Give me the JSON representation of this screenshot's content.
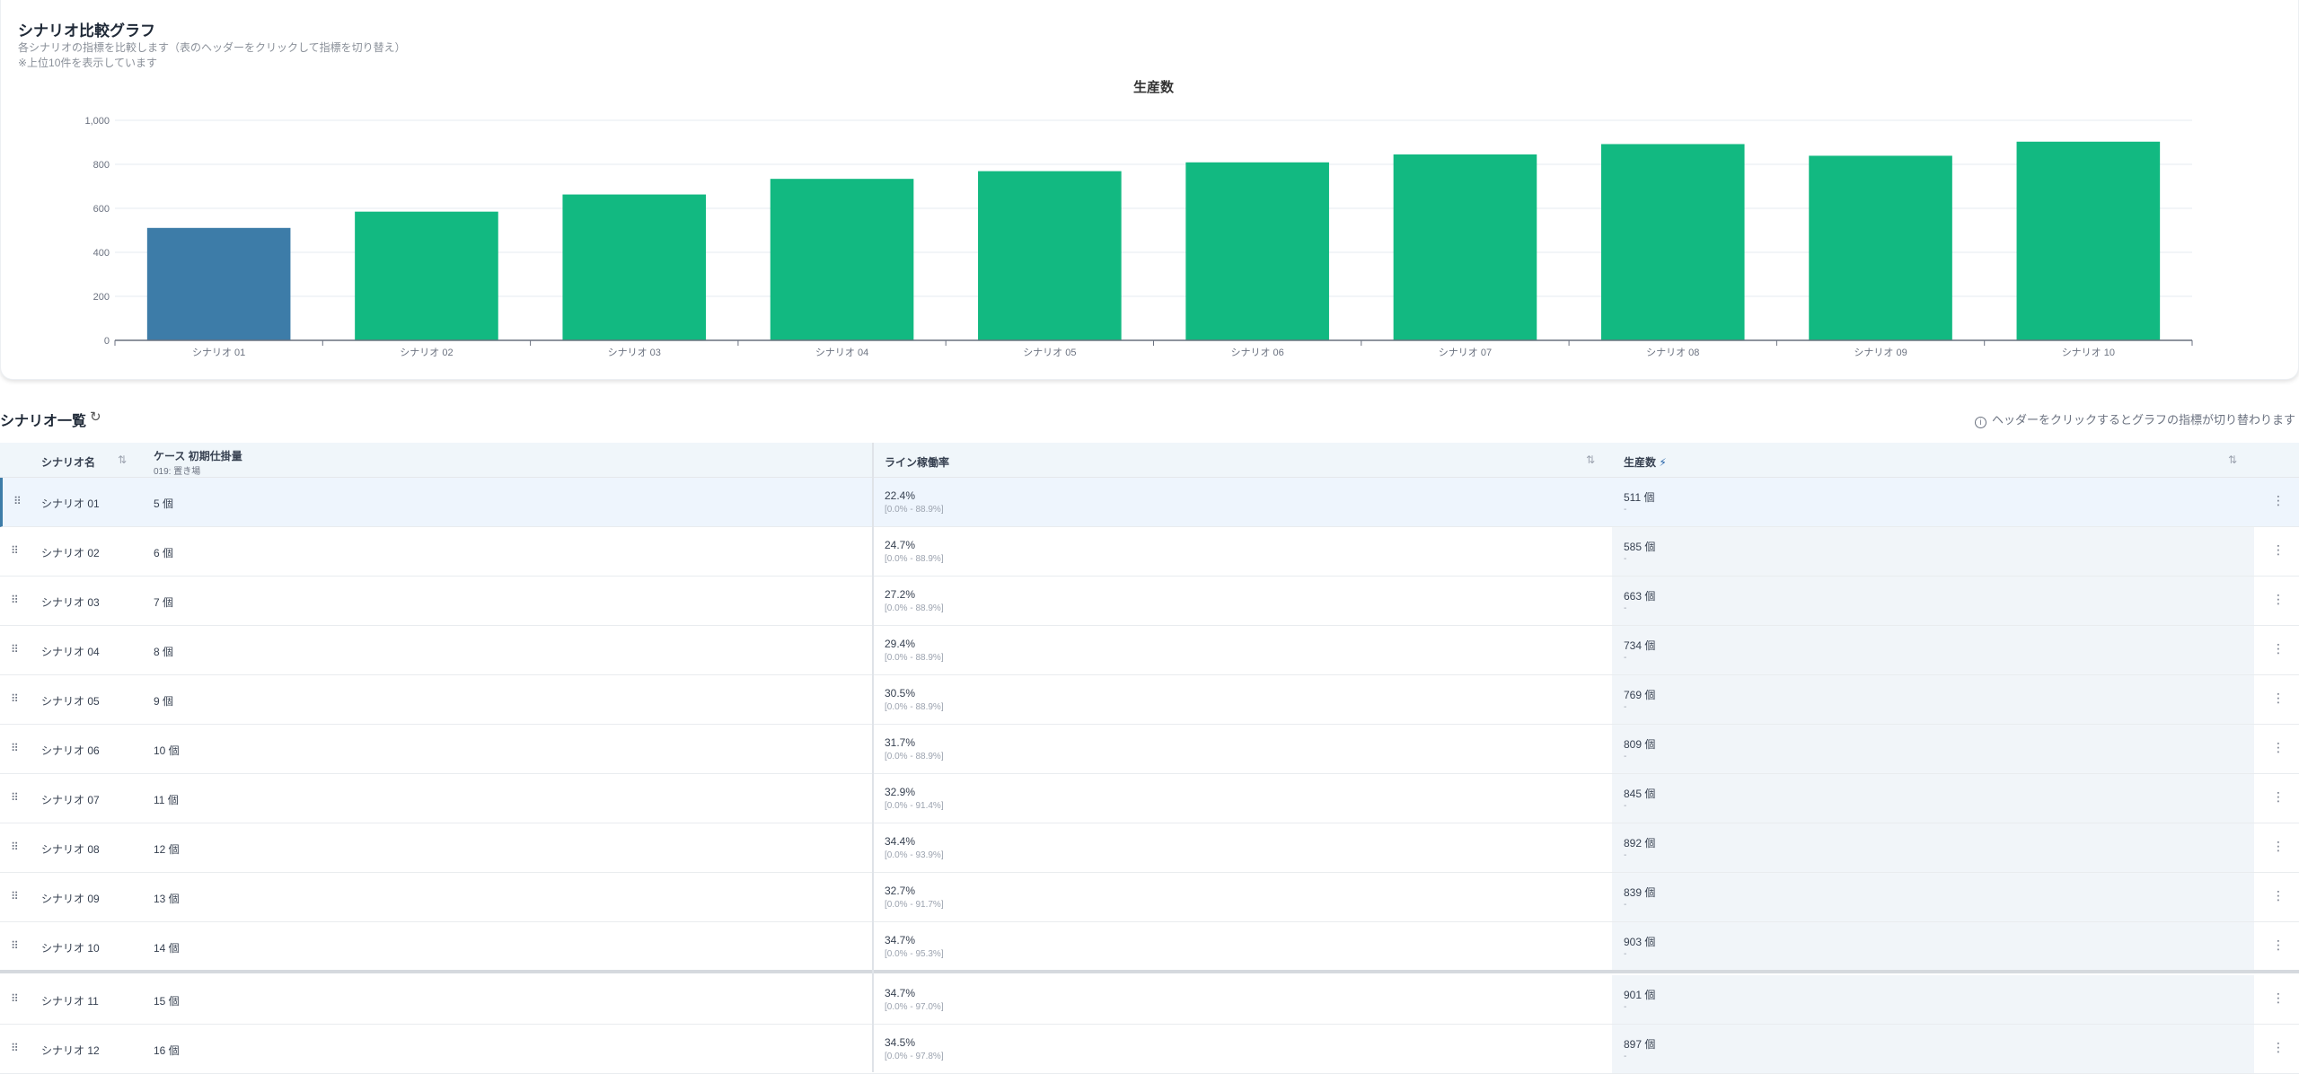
{
  "chart_card": {
    "title": "シナリオ比較グラフ",
    "subtitle": "各シナリオの指標を比較します（表のヘッダーをクリックして指標を切り替え）",
    "note": "※上位10件を表示しています"
  },
  "chart_data": {
    "type": "bar",
    "title": "生産数",
    "categories": [
      "シナリオ 01",
      "シナリオ 02",
      "シナリオ 03",
      "シナリオ 04",
      "シナリオ 05",
      "シナリオ 06",
      "シナリオ 07",
      "シナリオ 08",
      "シナリオ 09",
      "シナリオ 10"
    ],
    "values": [
      511,
      585,
      663,
      734,
      769,
      809,
      845,
      892,
      839,
      903
    ],
    "ylim": [
      0,
      1000
    ],
    "yticks": [
      0,
      200,
      400,
      600,
      800,
      1000
    ],
    "ytick_labels": [
      "0",
      "200",
      "400",
      "600",
      "800",
      "1,000"
    ],
    "grid": true,
    "colors": {
      "highlight": "#3d7ca8",
      "default": "#12b981"
    },
    "highlight_index": 0
  },
  "list": {
    "title": "シナリオ一覧",
    "refresh_icon": "refresh-icon",
    "hint": "ヘッダーをクリックするとグラフの指標が切り替わります"
  },
  "columns": {
    "name": "シナリオ名",
    "case": "ケース 初期仕掛量",
    "case_sub": "019: 置き場",
    "line_rate": "ライン稼働率",
    "production": "生産数"
  },
  "rows": [
    {
      "name": "シナリオ 01",
      "case": "5 個",
      "rate": "22.4%",
      "range": "[0.0% - 88.9%]",
      "prod": "511 個",
      "prod_sub": "-"
    },
    {
      "name": "シナリオ 02",
      "case": "6 個",
      "rate": "24.7%",
      "range": "[0.0% - 88.9%]",
      "prod": "585 個",
      "prod_sub": "-"
    },
    {
      "name": "シナリオ 03",
      "case": "7 個",
      "rate": "27.2%",
      "range": "[0.0% - 88.9%]",
      "prod": "663 個",
      "prod_sub": "-"
    },
    {
      "name": "シナリオ 04",
      "case": "8 個",
      "rate": "29.4%",
      "range": "[0.0% - 88.9%]",
      "prod": "734 個",
      "prod_sub": "-"
    },
    {
      "name": "シナリオ 05",
      "case": "9 個",
      "rate": "30.5%",
      "range": "[0.0% - 88.9%]",
      "prod": "769 個",
      "prod_sub": "-"
    },
    {
      "name": "シナリオ 06",
      "case": "10 個",
      "rate": "31.7%",
      "range": "[0.0% - 88.9%]",
      "prod": "809 個",
      "prod_sub": "-"
    },
    {
      "name": "シナリオ 07",
      "case": "11 個",
      "rate": "32.9%",
      "range": "[0.0% - 91.4%]",
      "prod": "845 個",
      "prod_sub": "-"
    },
    {
      "name": "シナリオ 08",
      "case": "12 個",
      "rate": "34.4%",
      "range": "[0.0% - 93.9%]",
      "prod": "892 個",
      "prod_sub": "-"
    },
    {
      "name": "シナリオ 09",
      "case": "13 個",
      "rate": "32.7%",
      "range": "[0.0% - 91.7%]",
      "prod": "839 個",
      "prod_sub": "-"
    },
    {
      "name": "シナリオ 10",
      "case": "14 個",
      "rate": "34.7%",
      "range": "[0.0% - 95.3%]",
      "prod": "903 個",
      "prod_sub": "-"
    },
    {
      "name": "シナリオ 11",
      "case": "15 個",
      "rate": "34.7%",
      "range": "[0.0% - 97.0%]",
      "prod": "901 個",
      "prod_sub": "-"
    },
    {
      "name": "シナリオ 12",
      "case": "16 個",
      "rate": "34.5%",
      "range": "[0.0% - 97.8%]",
      "prod": "897 個",
      "prod_sub": "-"
    }
  ]
}
